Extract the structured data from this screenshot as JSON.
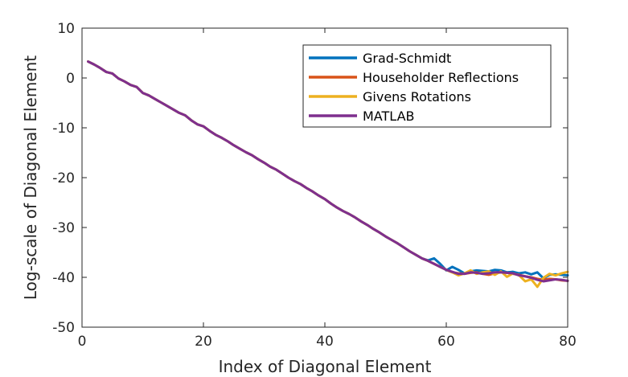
{
  "chart_data": {
    "type": "line",
    "title": "",
    "xlabel": "Index of Diagonal Element",
    "ylabel": "Log-scale of Diagonal Element",
    "xlim": [
      0,
      80
    ],
    "ylim": [
      -50,
      10
    ],
    "xticks": [
      0,
      20,
      40,
      60,
      80
    ],
    "yticks": [
      10,
      0,
      -10,
      -20,
      -30,
      -40,
      -50
    ],
    "grid": false,
    "legend_position": "top-right",
    "x": [
      1,
      2,
      3,
      4,
      5,
      6,
      7,
      8,
      9,
      10,
      11,
      12,
      13,
      14,
      15,
      16,
      17,
      18,
      19,
      20,
      21,
      22,
      23,
      24,
      25,
      26,
      27,
      28,
      29,
      30,
      31,
      32,
      33,
      34,
      35,
      36,
      37,
      38,
      39,
      40,
      41,
      42,
      43,
      44,
      45,
      46,
      47,
      48,
      49,
      50,
      51,
      52,
      53,
      54,
      55,
      56,
      57,
      58,
      59,
      60,
      61,
      62,
      63,
      64,
      65,
      66,
      67,
      68,
      69,
      70,
      71,
      72,
      73,
      74,
      75,
      76,
      77,
      78,
      79,
      80
    ],
    "series": [
      {
        "name": "Grad-Schmidt",
        "color": "#0072BD",
        "values": [
          3.3,
          2.7,
          2.0,
          1.2,
          0.9,
          -0.1,
          -0.7,
          -1.4,
          -1.8,
          -3.0,
          -3.5,
          -4.2,
          -4.9,
          -5.6,
          -6.3,
          -7.0,
          -7.5,
          -8.5,
          -9.3,
          -9.7,
          -10.6,
          -11.4,
          -12.0,
          -12.7,
          -13.5,
          -14.2,
          -14.9,
          -15.5,
          -16.3,
          -17.0,
          -17.8,
          -18.4,
          -19.2,
          -20.0,
          -20.7,
          -21.3,
          -22.1,
          -22.8,
          -23.6,
          -24.3,
          -25.2,
          -26.0,
          -26.7,
          -27.3,
          -28.0,
          -28.8,
          -29.5,
          -30.3,
          -31.0,
          -31.8,
          -32.5,
          -33.2,
          -34.0,
          -34.8,
          -35.5,
          -36.2,
          -36.6,
          -36.2,
          -37.3,
          -38.6,
          -37.9,
          -38.5,
          -39.2,
          -38.8,
          -38.6,
          -38.7,
          -38.8,
          -38.5,
          -38.6,
          -39.0,
          -38.9,
          -39.2,
          -39.0,
          -39.4,
          -39.0,
          -40.2,
          -39.5,
          -39.4,
          -39.5,
          -39.6
        ]
      },
      {
        "name": "Householder Reflections",
        "color": "#D95319",
        "values": [
          3.3,
          2.7,
          2.0,
          1.2,
          0.9,
          -0.1,
          -0.7,
          -1.4,
          -1.8,
          -3.0,
          -3.5,
          -4.2,
          -4.9,
          -5.6,
          -6.3,
          -7.0,
          -7.5,
          -8.5,
          -9.3,
          -9.7,
          -10.6,
          -11.4,
          -12.0,
          -12.7,
          -13.5,
          -14.2,
          -14.9,
          -15.5,
          -16.3,
          -17.0,
          -17.8,
          -18.4,
          -19.2,
          -20.0,
          -20.7,
          -21.3,
          -22.1,
          -22.8,
          -23.6,
          -24.3,
          -25.2,
          -26.0,
          -26.7,
          -27.3,
          -28.0,
          -28.8,
          -29.5,
          -30.3,
          -31.0,
          -31.8,
          -32.5,
          -33.2,
          -34.0,
          -34.8,
          -35.5,
          -36.2,
          -36.7,
          -37.3,
          -37.9,
          -38.5,
          -39.0,
          -39.2,
          -39.3,
          -39.1,
          -39.0,
          -39.3,
          -39.5,
          -39.2,
          -39.0,
          -39.1,
          -39.3,
          -39.5,
          -39.8,
          -40.0,
          -40.3,
          -40.5,
          -40.3,
          -40.4,
          -40.6,
          -40.7
        ]
      },
      {
        "name": "Givens Rotations",
        "color": "#EDB120",
        "values": [
          3.3,
          2.7,
          2.0,
          1.2,
          0.9,
          -0.1,
          -0.7,
          -1.4,
          -1.8,
          -3.0,
          -3.5,
          -4.2,
          -4.9,
          -5.6,
          -6.3,
          -7.0,
          -7.5,
          -8.5,
          -9.3,
          -9.7,
          -10.6,
          -11.4,
          -12.0,
          -12.7,
          -13.5,
          -14.2,
          -14.9,
          -15.5,
          -16.3,
          -17.0,
          -17.8,
          -18.4,
          -19.2,
          -20.0,
          -20.7,
          -21.3,
          -22.1,
          -22.8,
          -23.6,
          -24.3,
          -25.2,
          -26.0,
          -26.7,
          -27.3,
          -28.0,
          -28.8,
          -29.5,
          -30.3,
          -31.0,
          -31.8,
          -32.5,
          -33.2,
          -34.0,
          -34.8,
          -35.5,
          -36.2,
          -36.7,
          -37.3,
          -37.9,
          -38.5,
          -39.0,
          -39.6,
          -39.2,
          -38.6,
          -39.3,
          -39.0,
          -38.8,
          -39.5,
          -38.8,
          -39.9,
          -39.2,
          -39.6,
          -40.8,
          -40.4,
          -41.9,
          -40.1,
          -39.3,
          -39.6,
          -39.2,
          -38.9
        ]
      },
      {
        "name": "MATLAB",
        "color": "#7E2F8E",
        "values": [
          3.3,
          2.7,
          2.0,
          1.2,
          0.9,
          -0.1,
          -0.7,
          -1.4,
          -1.8,
          -3.0,
          -3.5,
          -4.2,
          -4.9,
          -5.6,
          -6.3,
          -7.0,
          -7.5,
          -8.5,
          -9.3,
          -9.7,
          -10.6,
          -11.4,
          -12.0,
          -12.7,
          -13.5,
          -14.2,
          -14.9,
          -15.5,
          -16.3,
          -17.0,
          -17.8,
          -18.4,
          -19.2,
          -20.0,
          -20.7,
          -21.3,
          -22.1,
          -22.8,
          -23.6,
          -24.3,
          -25.2,
          -26.0,
          -26.7,
          -27.3,
          -28.0,
          -28.8,
          -29.5,
          -30.3,
          -31.0,
          -31.8,
          -32.5,
          -33.2,
          -34.0,
          -34.8,
          -35.5,
          -36.2,
          -36.7,
          -37.3,
          -37.9,
          -38.5,
          -38.9,
          -39.3,
          -39.3,
          -39.0,
          -39.1,
          -39.3,
          -39.2,
          -39.0,
          -39.0,
          -39.1,
          -39.2,
          -39.6,
          -39.8,
          -40.1,
          -40.5,
          -40.8,
          -40.6,
          -40.4,
          -40.5,
          -40.7
        ]
      }
    ]
  }
}
